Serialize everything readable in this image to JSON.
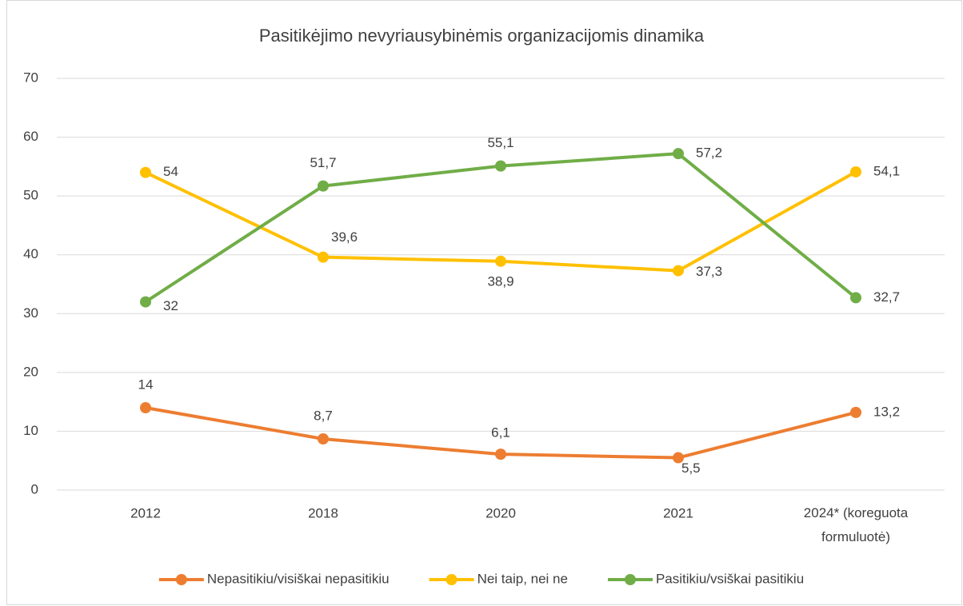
{
  "chart_data": {
    "type": "line",
    "title": "Pasitikėjimo nevyriausybinėmis organizacijomis dinamika",
    "categories": [
      "2012",
      "2018",
      "2020",
      "2021",
      "2024* (koreguota formuluotė)"
    ],
    "series": [
      {
        "name": "Nepasitikiu/visiškai nepasitikiu",
        "color": "#ed7d31",
        "values": [
          14,
          8.7,
          6.1,
          5.5,
          13.2
        ],
        "value_labels": [
          "14",
          "8,7",
          "6,1",
          "5,5",
          "13,2"
        ]
      },
      {
        "name": "Nei taip, nei ne",
        "color": "#ffc000",
        "values": [
          54,
          39.6,
          38.9,
          37.3,
          54.1
        ],
        "value_labels": [
          "54",
          "39,6",
          "38,9",
          "37,3",
          "54,1"
        ]
      },
      {
        "name": "Pasitikiu/vsiškai pasitikiu",
        "color": "#70ad47",
        "values": [
          32,
          51.7,
          55.1,
          57.2,
          32.7
        ],
        "value_labels": [
          "32",
          "51,7",
          "55,1",
          "57,2",
          "32,7"
        ]
      }
    ],
    "ylim": [
      0,
      70
    ],
    "yticks": [
      0,
      10,
      20,
      30,
      40,
      50,
      60,
      70
    ],
    "grid": true,
    "legend": "bottom"
  }
}
